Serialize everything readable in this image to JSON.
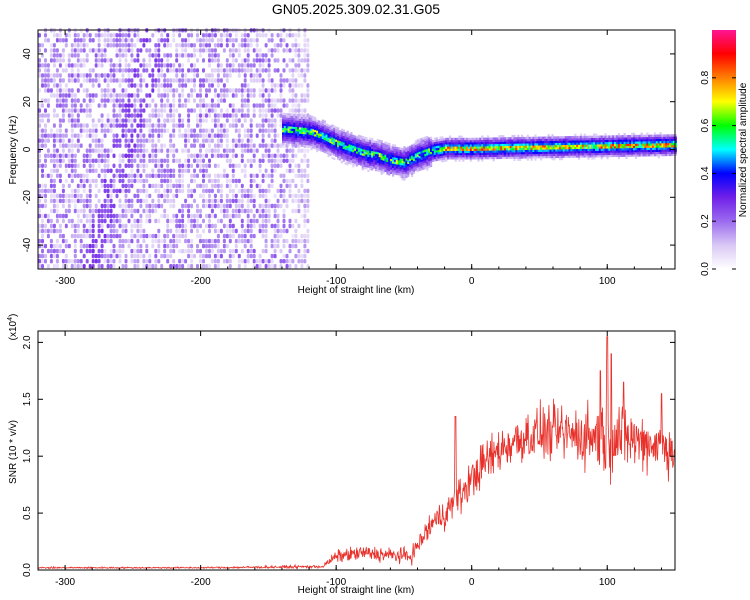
{
  "title": "GN05.2025.309.02.31.G05",
  "chart_data": [
    {
      "type": "heatmap",
      "title": "GN05.2025.309.02.31.G05",
      "xlabel": "Height of straight line (km)",
      "ylabel": "Frequency (Hz)",
      "xlim": [
        -320,
        150
      ],
      "ylim": [
        -50,
        50
      ],
      "xticks": [
        -300,
        -200,
        -100,
        0,
        100
      ],
      "yticks": [
        -40,
        -20,
        0,
        20,
        40
      ],
      "colorbar": {
        "label": "Normalized spectral amplitude",
        "range": [
          0.0,
          1.0
        ],
        "ticks": [
          0.0,
          0.2,
          0.4,
          0.6,
          0.8
        ],
        "colormap": [
          "#ffffff",
          "#d9c8f5",
          "#9b6bef",
          "#7020e8",
          "#0000ff",
          "#00ffff",
          "#00ff00",
          "#ffff00",
          "#ff7f00",
          "#ff0000",
          "#ff1493"
        ]
      },
      "trace": {
        "noise_region_x": [
          -320,
          -120
        ],
        "signal_x": [
          -140,
          -120,
          -110,
          -100,
          -90,
          -80,
          -70,
          -60,
          -50,
          -40,
          -30,
          -20,
          0,
          50,
          100,
          150
        ],
        "signal_freq": [
          8,
          7,
          5,
          2,
          0,
          -2,
          -3,
          -5,
          -6,
          -3,
          -1,
          0,
          0,
          0.5,
          1,
          1.5
        ]
      },
      "grid": false
    },
    {
      "type": "line",
      "title": "",
      "xlabel": "Height of straight line (km)",
      "ylabel": "SNR (10 * v/v)",
      "scale_label": "(x10",
      "scale_exponent": "4",
      "xlim": [
        -320,
        150
      ],
      "ylim": [
        0,
        2.1
      ],
      "xticks": [
        -300,
        -200,
        -100,
        0,
        100
      ],
      "yticks": [
        0.0,
        0.5,
        1.0,
        1.5,
        2.0
      ],
      "ytick_labels": [
        "0.0",
        "0.5",
        "1.0",
        "1.5",
        "2.0"
      ],
      "series": [
        {
          "name": "",
          "color": "#e8312a",
          "x": [
            -320,
            -200,
            -110,
            -100,
            -80,
            -60,
            -45,
            -35,
            -30,
            -20,
            -10,
            0,
            10,
            20,
            30,
            40,
            50,
            60,
            70,
            80,
            90,
            100,
            110,
            120,
            130,
            140,
            150
          ],
          "mean": [
            0.02,
            0.02,
            0.03,
            0.12,
            0.15,
            0.13,
            0.12,
            0.3,
            0.4,
            0.5,
            0.62,
            0.8,
            0.95,
            1.05,
            1.12,
            1.18,
            1.2,
            1.2,
            1.2,
            1.18,
            1.18,
            1.2,
            1.18,
            1.15,
            1.12,
            1.1,
            1.05
          ],
          "spread": [
            0.01,
            0.01,
            0.02,
            0.08,
            0.1,
            0.1,
            0.1,
            0.15,
            0.2,
            0.2,
            0.25,
            0.25,
            0.3,
            0.3,
            0.3,
            0.35,
            0.35,
            0.35,
            0.35,
            0.4,
            0.45,
            0.55,
            0.45,
            0.4,
            0.35,
            0.35,
            0.35
          ],
          "peaks": [
            [
              100,
              2.05
            ],
            [
              103,
              1.9
            ],
            [
              95,
              1.75
            ],
            [
              112,
              1.65
            ],
            [
              -12,
              1.35
            ],
            [
              140,
              1.55
            ]
          ]
        }
      ],
      "grid": false
    }
  ]
}
